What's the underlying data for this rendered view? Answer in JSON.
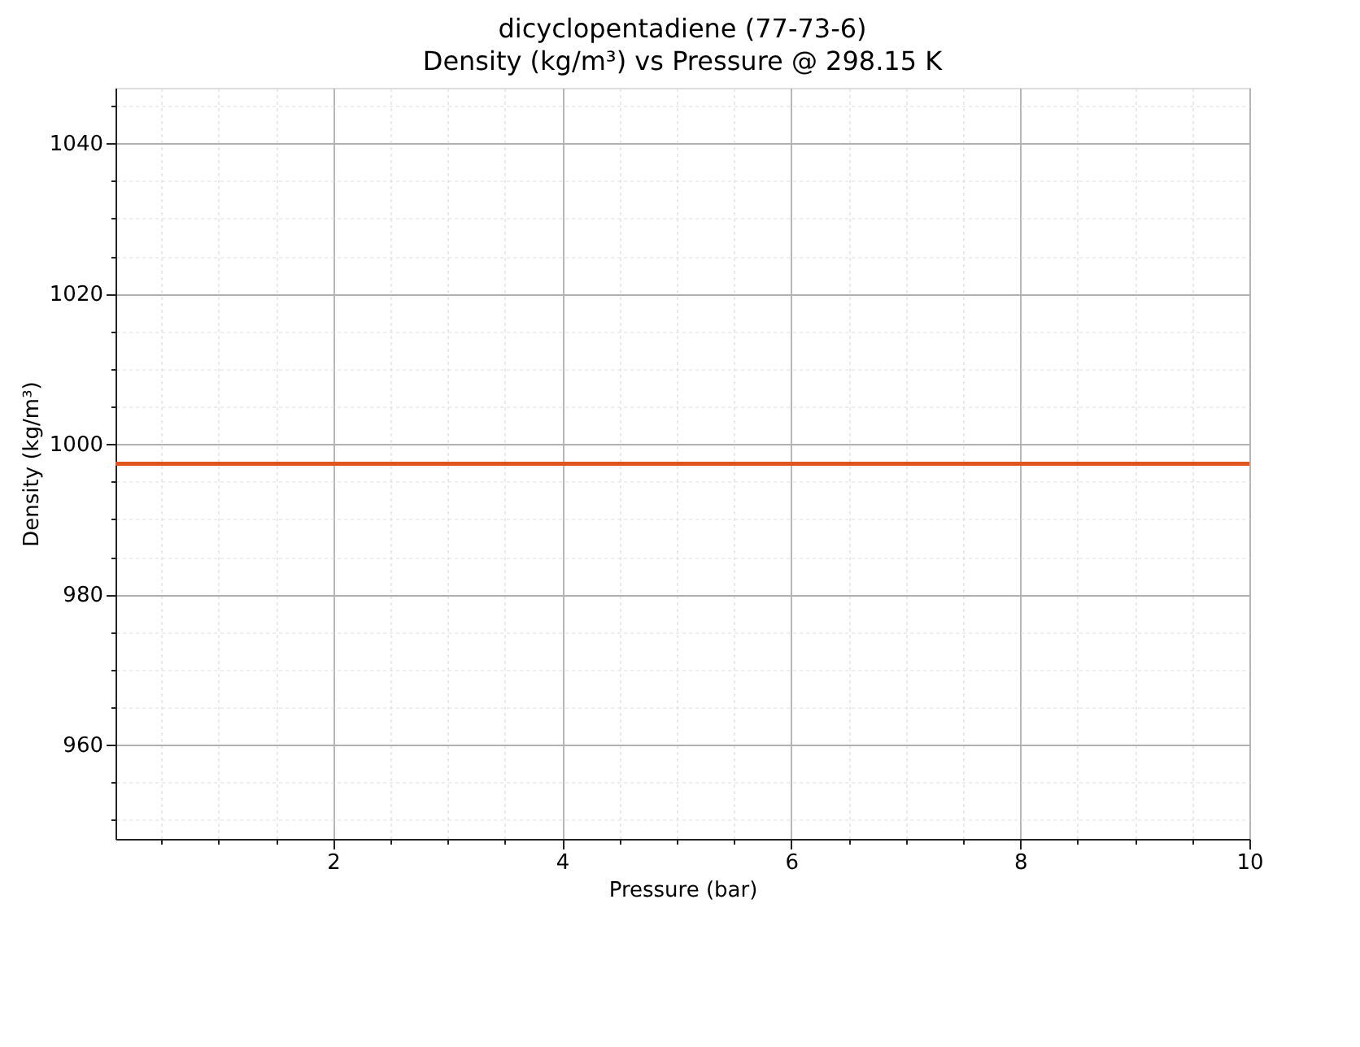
{
  "chart_data": {
    "type": "line",
    "title": "dicyclopentadiene (77-73-6)",
    "subtitle": "Density (kg/m³) vs Pressure @ 298.15 K",
    "xlabel": "Pressure (bar)",
    "ylabel": "Density (kg/m³)",
    "x": [
      0.1,
      10
    ],
    "series": [
      {
        "color": "#e0541f",
        "values": [
          997.4,
          997.4
        ]
      }
    ],
    "xlim": [
      0.1,
      10
    ],
    "xticks": [
      {
        "value": 0.5,
        "label": null
      },
      {
        "value": 1,
        "label": null
      },
      {
        "value": 1.5,
        "label": null
      },
      2,
      {
        "value": 2.5,
        "label": null
      },
      {
        "value": 3,
        "label": null
      },
      {
        "value": 3.5,
        "label": null
      },
      4,
      {
        "value": 4.5,
        "label": null
      },
      {
        "value": 5,
        "label": null
      },
      {
        "value": 5.5,
        "label": null
      },
      6,
      {
        "value": 6.5,
        "label": null
      },
      {
        "value": 7,
        "label": null
      },
      {
        "value": 7.5,
        "label": null
      },
      8,
      {
        "value": 8.5,
        "label": null
      },
      {
        "value": 9,
        "label": null
      },
      {
        "value": 9.5,
        "label": null
      },
      10
    ],
    "ylim": [
      947.5,
      1047.4
    ],
    "yticks": [
      {
        "value": 950,
        "label": null
      },
      {
        "value": 955,
        "label": null
      },
      960,
      {
        "value": 965,
        "label": null
      },
      {
        "value": 970,
        "label": null
      },
      {
        "value": 975,
        "label": null
      },
      980,
      {
        "value": 985,
        "label": null
      },
      {
        "value": 990,
        "label": null
      },
      {
        "value": 995,
        "label": null
      },
      1000,
      {
        "value": 1005,
        "label": null
      },
      {
        "value": 1010,
        "label": null
      },
      {
        "value": 1015,
        "label": null
      },
      1020,
      {
        "value": 1025,
        "label": null
      },
      {
        "value": 1030,
        "label": null
      },
      {
        "value": 1035,
        "label": null
      },
      1040,
      {
        "value": 1045,
        "label": null
      }
    ],
    "grid": true,
    "marker": "none",
    "line_style": "solid"
  }
}
